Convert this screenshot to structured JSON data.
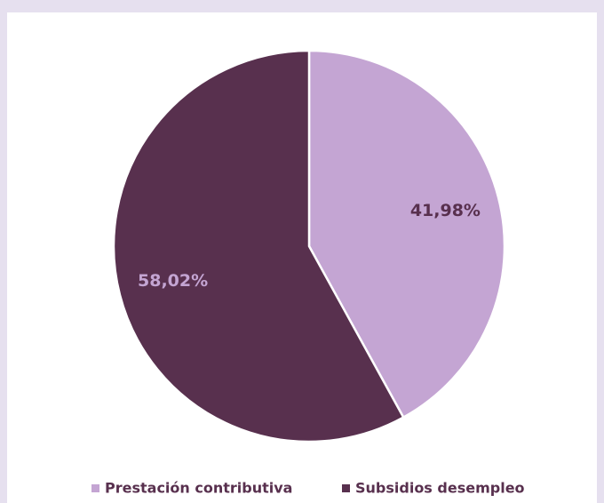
{
  "chart_data": {
    "type": "pie",
    "categories": [
      "Prestación contributiva",
      "Subsidios desempleo"
    ],
    "values": [
      41.98,
      58.02
    ],
    "value_labels": [
      "41,98%",
      "58,02%"
    ],
    "colors": [
      "#c4a5d3",
      "#58304e"
    ],
    "legend": "bottom"
  }
}
